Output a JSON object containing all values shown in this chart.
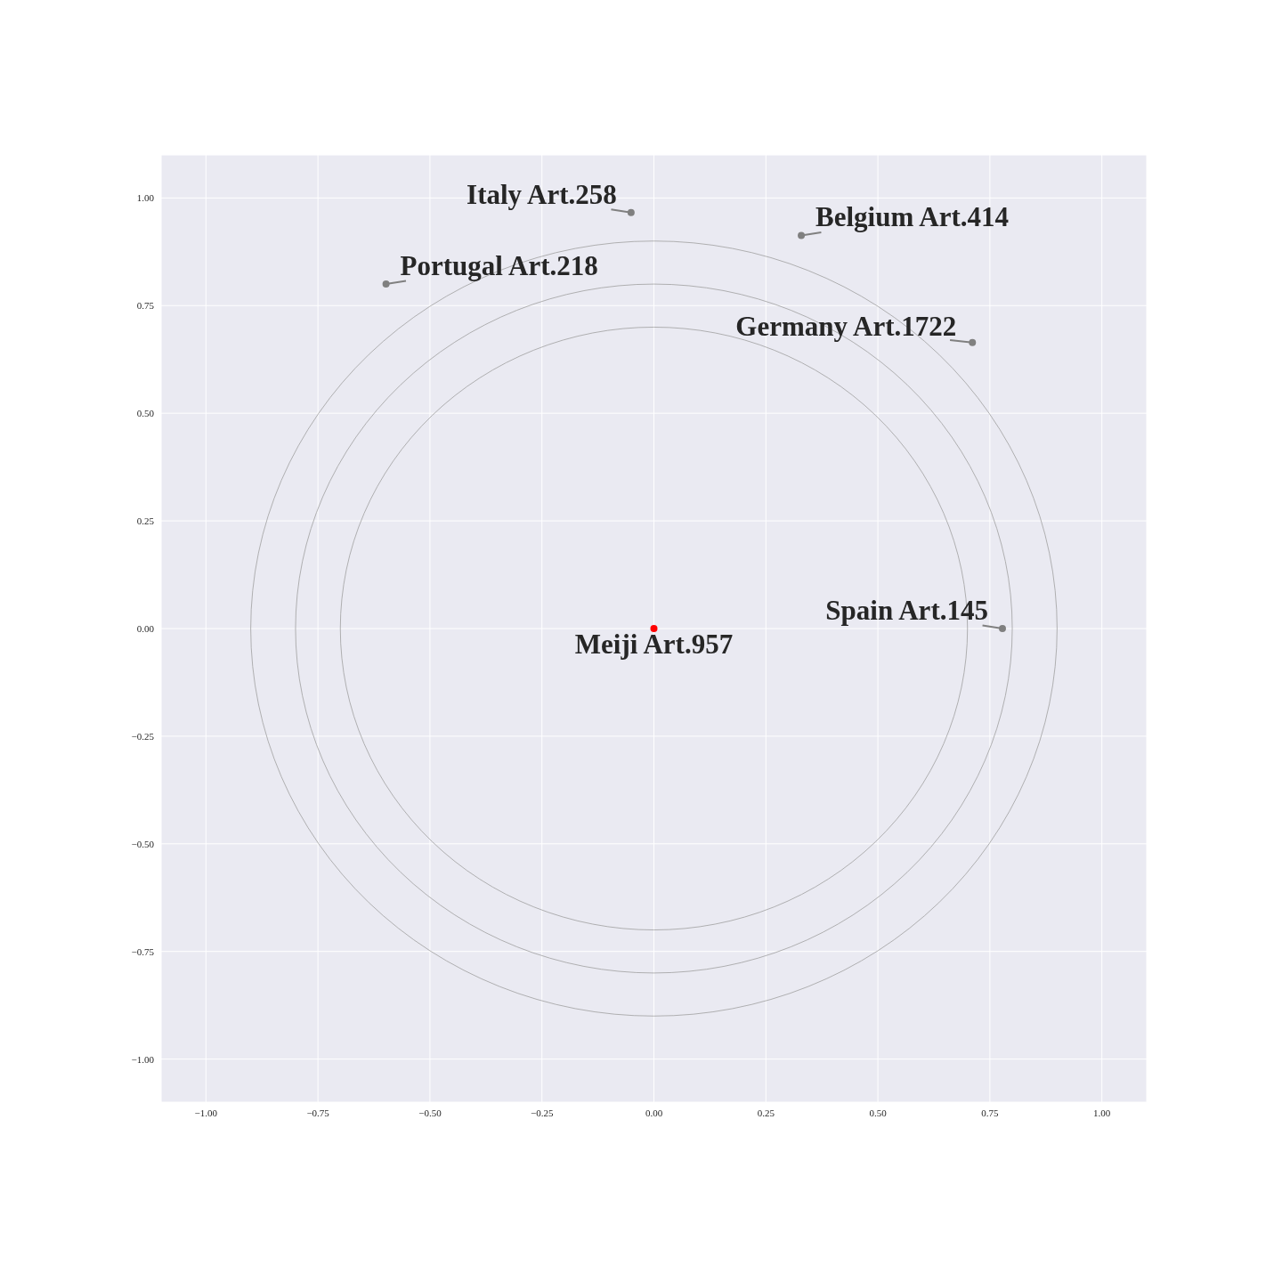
{
  "chart_data": {
    "type": "scatter",
    "xlim": [
      -1.1,
      1.1
    ],
    "ylim": [
      -1.1,
      1.1
    ],
    "xticks": [
      {
        "value": -1,
        "label": "−1.00"
      },
      {
        "value": -0.75,
        "label": "−0.75"
      },
      {
        "value": -0.5,
        "label": "−0.50"
      },
      {
        "value": -0.25,
        "label": "−0.25"
      },
      {
        "value": 0,
        "label": "0.00"
      },
      {
        "value": 0.25,
        "label": "0.25"
      },
      {
        "value": 0.5,
        "label": "0.50"
      },
      {
        "value": 0.75,
        "label": "0.75"
      },
      {
        "value": 1,
        "label": "1.00"
      }
    ],
    "yticks": [
      {
        "value": -1,
        "label": "−1.00"
      },
      {
        "value": -0.75,
        "label": "−0.75"
      },
      {
        "value": -0.5,
        "label": "−0.50"
      },
      {
        "value": -0.25,
        "label": "−0.25"
      },
      {
        "value": 0,
        "label": "0.00"
      },
      {
        "value": 0.25,
        "label": "0.25"
      },
      {
        "value": 0.5,
        "label": "0.50"
      },
      {
        "value": 0.75,
        "label": "0.75"
      },
      {
        "value": 1,
        "label": "1.00"
      }
    ],
    "grid": true,
    "marker": "circle",
    "series": [
      {
        "x": [
          0,
          -0.051,
          0.329,
          -0.598,
          0.711,
          0.778
        ],
        "values": [
          0,
          0.966,
          0.913,
          0.8,
          0.664,
          0
        ],
        "colors": [
          "#ff0000",
          "#808080",
          "#808080",
          "#808080",
          "#808080",
          "#808080"
        ]
      }
    ],
    "annotations": [
      {
        "text": "Meiji Art.957",
        "x": 0,
        "y": 0
      },
      {
        "text": "Italy Art.258",
        "x": -0.051,
        "y": 0.966
      },
      {
        "text": "Belgium Art.414",
        "x": 0.329,
        "y": 0.913
      },
      {
        "text": "Portugal Art.218",
        "x": -0.598,
        "y": 0.8
      },
      {
        "text": "Germany Art.1722",
        "x": 0.711,
        "y": 0.664
      },
      {
        "text": "Spain Art.145",
        "x": 0.778,
        "y": 0
      }
    ]
  }
}
